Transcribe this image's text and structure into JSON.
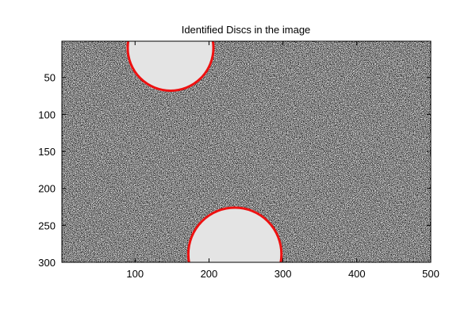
{
  "chart_data": {
    "type": "image",
    "title": "Identified Discs in the image",
    "xlabel": "",
    "ylabel": "",
    "xlim": [
      1,
      500
    ],
    "ylim": [
      1,
      300
    ],
    "y_reversed": true,
    "x_ticks": [
      100,
      200,
      300,
      400,
      500
    ],
    "y_ticks": [
      50,
      100,
      150,
      200,
      250,
      300
    ],
    "x_tick_labels": [
      "100",
      "200",
      "300",
      "400",
      "500"
    ],
    "y_tick_labels": [
      "50",
      "100",
      "150",
      "200",
      "250",
      "300"
    ],
    "background": "noisy-dark-image",
    "discs": [
      {
        "cx": 148,
        "cy": 10,
        "r": 58
      },
      {
        "cx": 235,
        "cy": 289,
        "r": 63
      }
    ],
    "disc_fill_color": "#e4e4e4",
    "outline_color": "#ee1111",
    "grid": false
  }
}
